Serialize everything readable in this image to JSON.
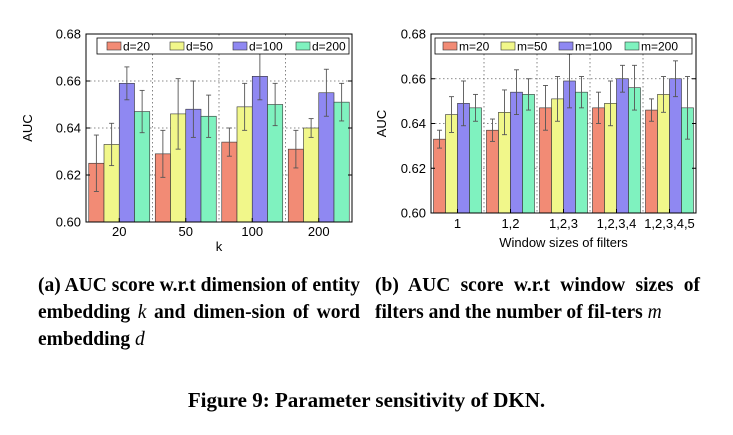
{
  "chart_data": [
    {
      "type": "bar",
      "panel": "a",
      "title": "",
      "xlabel": "k",
      "ylabel": "AUC",
      "ylim": [
        0.6,
        0.68
      ],
      "yticks": [
        "0.60",
        "0.62",
        "0.64",
        "0.66",
        "0.68"
      ],
      "categories": [
        "20",
        "50",
        "100",
        "200"
      ],
      "legend_position": "top",
      "grid": true,
      "error_bars": true,
      "series": [
        {
          "name": "d=20",
          "color": "#f28b75",
          "values": [
            0.625,
            0.629,
            0.634,
            0.631
          ],
          "errors": [
            0.012,
            0.01,
            0.006,
            0.008
          ]
        },
        {
          "name": "d=50",
          "color": "#f1f78a",
          "values": [
            0.633,
            0.646,
            0.649,
            0.64
          ],
          "errors": [
            0.009,
            0.015,
            0.01,
            0.004
          ]
        },
        {
          "name": "d=100",
          "color": "#8f88f2",
          "values": [
            0.659,
            0.648,
            0.662,
            0.655
          ],
          "errors": [
            0.007,
            0.012,
            0.01,
            0.01
          ]
        },
        {
          "name": "d=200",
          "color": "#7ff2bf",
          "values": [
            0.647,
            0.645,
            0.65,
            0.651
          ],
          "errors": [
            0.009,
            0.009,
            0.009,
            0.008
          ]
        }
      ]
    },
    {
      "type": "bar",
      "panel": "b",
      "title": "",
      "xlabel": "Window sizes of filters",
      "ylabel": "AUC",
      "ylim": [
        0.6,
        0.68
      ],
      "yticks": [
        "0.60",
        "0.62",
        "0.64",
        "0.66",
        "0.68"
      ],
      "categories": [
        "1",
        "1,2",
        "1,2,3",
        "1,2,3,4",
        "1,2,3,4,5"
      ],
      "legend_position": "top",
      "grid": true,
      "error_bars": true,
      "series": [
        {
          "name": "m=20",
          "color": "#f28b75",
          "values": [
            0.633,
            0.637,
            0.647,
            0.647,
            0.646
          ],
          "errors": [
            0.004,
            0.005,
            0.01,
            0.007,
            0.005
          ]
        },
        {
          "name": "m=50",
          "color": "#f1f78a",
          "values": [
            0.644,
            0.645,
            0.651,
            0.649,
            0.653
          ],
          "errors": [
            0.008,
            0.01,
            0.01,
            0.01,
            0.008
          ]
        },
        {
          "name": "m=100",
          "color": "#8f88f2",
          "values": [
            0.649,
            0.654,
            0.659,
            0.66,
            0.66
          ],
          "errors": [
            0.01,
            0.01,
            0.012,
            0.006,
            0.008
          ]
        },
        {
          "name": "m=200",
          "color": "#7ff2bf",
          "values": [
            0.647,
            0.653,
            0.654,
            0.656,
            0.647
          ],
          "errors": [
            0.006,
            0.007,
            0.007,
            0.01,
            0.014
          ]
        }
      ]
    }
  ],
  "captions": {
    "a_prefix": "(a) AUC score w.r.t dimension of entity embedding ",
    "a_var1": "k",
    "a_middle": " and dimen-sion of word embedding ",
    "a_var2": "d",
    "b_prefix": "(b) AUC score w.r.t window sizes of filters and the number of fil-ters ",
    "b_var": "m",
    "figure": "Figure 9: Parameter sensitivity of DKN."
  }
}
